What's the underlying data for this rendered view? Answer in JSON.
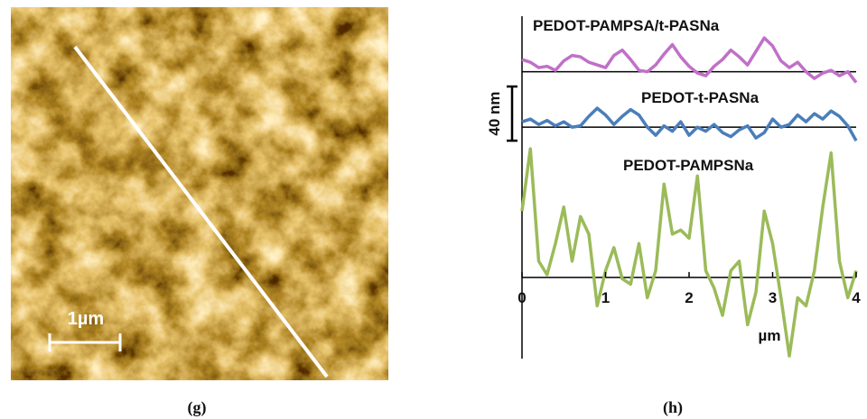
{
  "image": {
    "scale_bar_label": "1µm",
    "caption": "(g)"
  },
  "chart_data": {
    "type": "line",
    "caption": "(h)",
    "x_label": "µm",
    "xlim": [
      0,
      4
    ],
    "xticks": [
      0,
      1,
      2,
      3,
      4
    ],
    "ylim": [
      -60,
      193
    ],
    "scale_bar": {
      "value": 40,
      "label": "40 nm"
    },
    "x": [
      0,
      0.1,
      0.2,
      0.3,
      0.4,
      0.5,
      0.6,
      0.7,
      0.8,
      0.9,
      1,
      1.1,
      1.2,
      1.3,
      1.4,
      1.5,
      1.6,
      1.7,
      1.8,
      1.9,
      2,
      2.1,
      2.2,
      2.3,
      2.4,
      2.5,
      2.6,
      2.7,
      2.8,
      2.9,
      3,
      3.1,
      3.2,
      3.3,
      3.4,
      3.5,
      3.6,
      3.7,
      3.8,
      3.9,
      4
    ],
    "series": [
      {
        "name": "PEDOT-PAMPSA/t-PASNa",
        "color": "#c070c8",
        "baseline": 152,
        "values": [
          161,
          159,
          155,
          156,
          153,
          160,
          164,
          163,
          159,
          157,
          155,
          164,
          168,
          161,
          153,
          152,
          157,
          165,
          172,
          163,
          156,
          151,
          149,
          156,
          161,
          168,
          163,
          157,
          167,
          177,
          171,
          160,
          155,
          159,
          152,
          147,
          151,
          153,
          149,
          152,
          144
        ]
      },
      {
        "name": "PEDOT-t-PASNa",
        "color": "#4a7ebb",
        "baseline": 111,
        "values": [
          115,
          117,
          113,
          116,
          112,
          115,
          111,
          112,
          119,
          125,
          120,
          113,
          119,
          124,
          120,
          111,
          105,
          112,
          108,
          115,
          105,
          111,
          108,
          113,
          107,
          104,
          109,
          112,
          103,
          107,
          117,
          111,
          113,
          120,
          115,
          121,
          117,
          123,
          119,
          112,
          101
        ]
      },
      {
        "name": "PEDOT-PAMPSNa",
        "color": "#9bbb59",
        "baseline": 0,
        "values": [
          49,
          95,
          12,
          2,
          25,
          52,
          12,
          45,
          32,
          -21,
          5,
          22,
          -1,
          -5,
          25,
          -15,
          5,
          69,
          32,
          35,
          29,
          75,
          5,
          -8,
          -28,
          5,
          12,
          -35,
          -11,
          49,
          25,
          -15,
          -58,
          -15,
          -21,
          5,
          52,
          92,
          12,
          -15,
          5
        ]
      }
    ]
  }
}
